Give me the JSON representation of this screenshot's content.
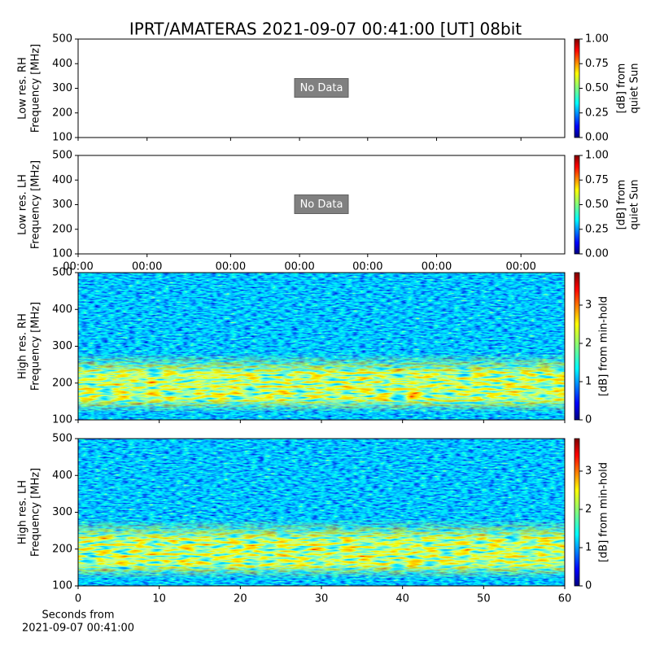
{
  "suptitle": "IPRT/AMATERAS 2021-09-07 00:41:00 [UT]   08bit",
  "chart_data": [
    {
      "type": "spectrogram",
      "ylabel": [
        "Low res. RH",
        "Frequency [MHz]"
      ],
      "ylim": [
        100,
        500
      ],
      "yticks": [
        100,
        200,
        300,
        400,
        500
      ],
      "xlim": [
        0,
        60
      ],
      "xticks": [
        0,
        8.5,
        18.8,
        27.3,
        35.7,
        44.2,
        54.6
      ],
      "show_xticklabels": false,
      "annotation": "No Data",
      "cbar": {
        "lim": [
          0,
          1
        ],
        "ticks": [
          {
            "value": 0,
            "label": "0.00"
          },
          {
            "value": 0.25,
            "label": "0.25"
          },
          {
            "value": 0.5,
            "label": "0.50"
          },
          {
            "value": 0.75,
            "label": "0.75"
          },
          {
            "value": 1,
            "label": "1.00"
          }
        ],
        "label": [
          "[dB] from",
          "quiet Sun"
        ]
      }
    },
    {
      "type": "spectrogram",
      "ylabel": [
        "Low res. LH",
        "Frequency [MHz]"
      ],
      "ylim": [
        100,
        500
      ],
      "yticks": [
        100,
        200,
        300,
        400,
        500
      ],
      "xlim": [
        0,
        60
      ],
      "xticks": [
        {
          "value": 0,
          "label": "00:00"
        },
        {
          "value": 8.5,
          "label": "00:00"
        },
        {
          "value": 18.8,
          "label": "00:00"
        },
        {
          "value": 27.3,
          "label": "00:00"
        },
        {
          "value": 35.7,
          "label": "00:00"
        },
        {
          "value": 44.2,
          "label": "00:00"
        },
        {
          "value": 54.6,
          "label": "00:00"
        }
      ],
      "show_xticklabels": true,
      "annotation": "No Data",
      "cbar": {
        "lim": [
          0,
          1
        ],
        "ticks": [
          {
            "value": 0,
            "label": "0.00"
          },
          {
            "value": 0.25,
            "label": "0.25"
          },
          {
            "value": 0.5,
            "label": "0.50"
          },
          {
            "value": 0.75,
            "label": "0.75"
          },
          {
            "value": 1,
            "label": "1.00"
          }
        ],
        "label": [
          "[dB] from",
          "quiet Sun"
        ]
      }
    },
    {
      "type": "spectrogram",
      "ylabel": [
        "High res. RH",
        "Frequency [MHz]"
      ],
      "ylim": [
        100,
        500
      ],
      "yticks": [
        100,
        200,
        300,
        400,
        500
      ],
      "xlim": [
        0,
        60
      ],
      "xticks": [
        0,
        10,
        20,
        30,
        40,
        50,
        60
      ],
      "show_xticklabels": false,
      "cbar": {
        "lim": [
          0,
          3.85
        ],
        "ticks": [
          0,
          1,
          2,
          3
        ],
        "label": [
          "[dB] from min-hold"
        ]
      }
    },
    {
      "type": "spectrogram",
      "ylabel": [
        "High res. LH",
        "Frequency [MHz]"
      ],
      "ylim": [
        100,
        500
      ],
      "yticks": [
        100,
        200,
        300,
        400,
        500
      ],
      "xlim": [
        0,
        60
      ],
      "xticks": [
        0,
        10,
        20,
        30,
        40,
        50,
        60
      ],
      "show_xticklabels": true,
      "xlabel": [
        "Seconds from",
        "2021-09-07 00:41:00"
      ],
      "cbar": {
        "lim": [
          0,
          3.85
        ],
        "ticks": [
          0,
          1,
          2,
          3
        ],
        "label": [
          "[dB] from min-hold"
        ]
      }
    }
  ]
}
